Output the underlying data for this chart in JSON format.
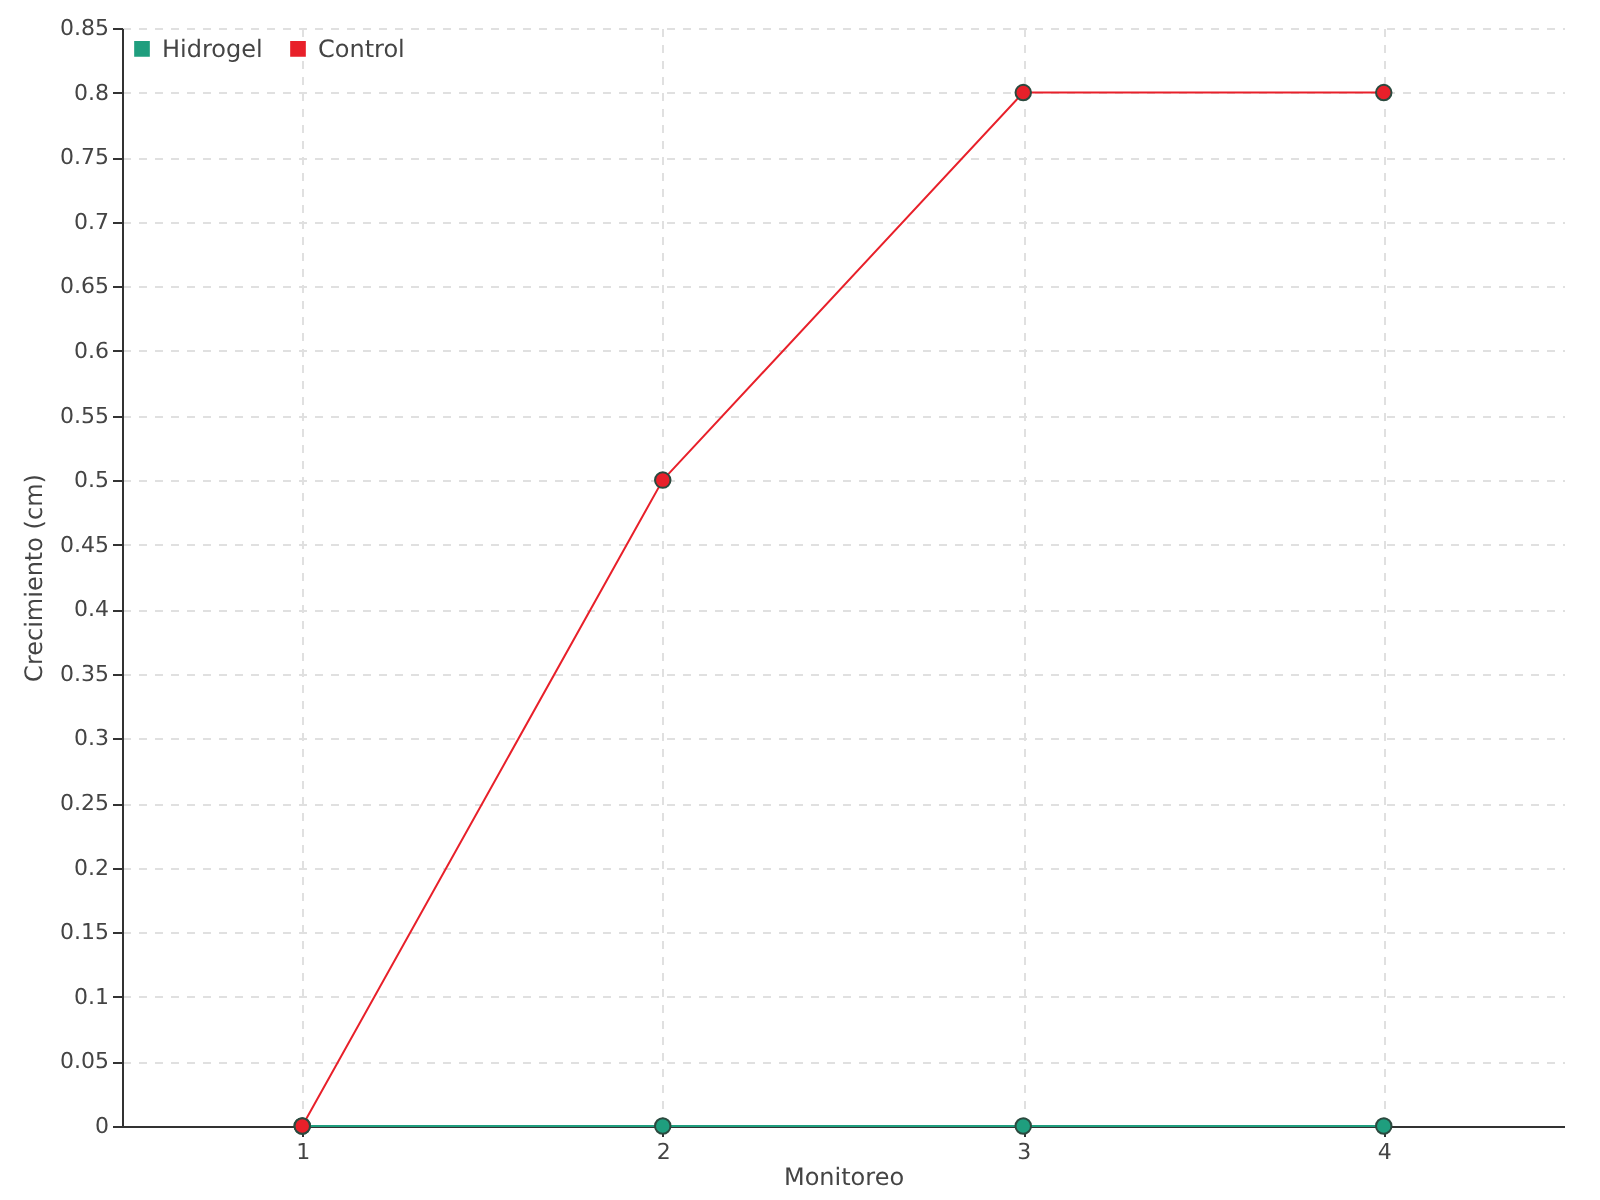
{
  "chart_data": {
    "type": "line",
    "xlabel": "Monitoreo",
    "ylabel": "Crecimiento (cm)",
    "categories": [
      "1",
      "2",
      "3",
      "4"
    ],
    "series": [
      {
        "name": "Hidrogel",
        "color": "#1f9e7e",
        "values": [
          0,
          0,
          0,
          0
        ]
      },
      {
        "name": "Control",
        "color": "#e8202a",
        "values": [
          0,
          0.5,
          0.8,
          0.8
        ]
      }
    ],
    "ylim": [
      0,
      0.85
    ],
    "yticks": [
      0,
      0.05,
      0.1,
      0.15,
      0.2,
      0.25,
      0.3,
      0.35,
      0.4,
      0.45,
      0.5,
      0.55,
      0.6,
      0.65,
      0.7,
      0.75,
      0.8,
      0.85
    ],
    "grid": true,
    "legend": "top left",
    "marker": "circle",
    "line_style": "solid"
  }
}
